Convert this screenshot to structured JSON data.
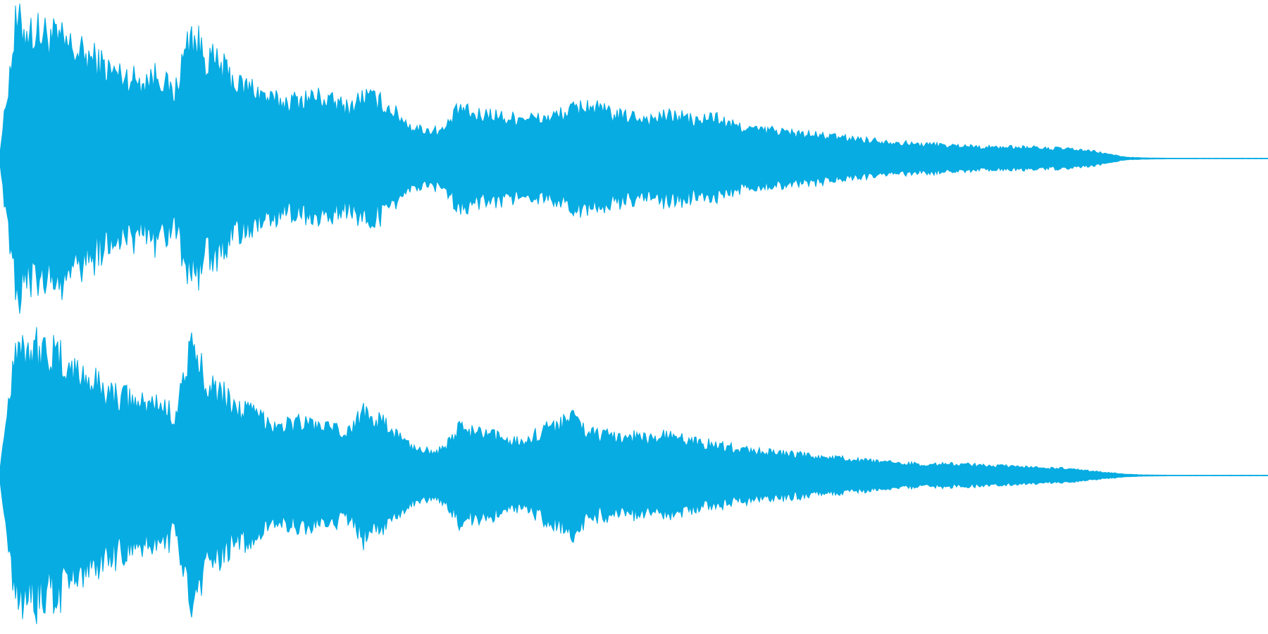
{
  "waveform": {
    "color": "#06ace2",
    "channel_count": 2,
    "channels": [
      {
        "id": "top",
        "envelope": [
          0.05,
          0.95,
          0.9,
          0.88,
          0.82,
          0.75,
          0.7,
          0.62,
          0.58,
          0.55,
          0.6,
          0.45,
          0.9,
          0.72,
          0.65,
          0.52,
          0.5,
          0.42,
          0.4,
          0.42,
          0.44,
          0.4,
          0.36,
          0.45,
          0.4,
          0.32,
          0.22,
          0.2,
          0.2,
          0.36,
          0.3,
          0.32,
          0.28,
          0.3,
          0.28,
          0.3,
          0.34,
          0.38,
          0.34,
          0.3,
          0.3,
          0.28,
          0.3,
          0.3,
          0.26,
          0.3,
          0.24,
          0.22,
          0.2,
          0.2,
          0.18,
          0.17,
          0.16,
          0.15,
          0.14,
          0.13,
          0.12,
          0.11,
          0.1,
          0.1,
          0.09,
          0.09,
          0.08,
          0.08,
          0.08,
          0.08,
          0.07,
          0.07,
          0.06,
          0.05,
          0.03,
          0.01,
          0.005,
          0.003,
          0.002,
          0.002,
          0.002,
          0.002,
          0.002,
          0.002,
          0.002
        ]
      },
      {
        "id": "bottom",
        "envelope": [
          0.05,
          0.95,
          0.92,
          0.88,
          0.8,
          0.72,
          0.66,
          0.58,
          0.55,
          0.5,
          0.52,
          0.42,
          0.88,
          0.7,
          0.58,
          0.48,
          0.44,
          0.38,
          0.36,
          0.38,
          0.36,
          0.32,
          0.3,
          0.48,
          0.38,
          0.3,
          0.2,
          0.18,
          0.18,
          0.34,
          0.3,
          0.28,
          0.26,
          0.24,
          0.3,
          0.36,
          0.42,
          0.32,
          0.28,
          0.28,
          0.28,
          0.26,
          0.28,
          0.26,
          0.24,
          0.22,
          0.2,
          0.18,
          0.17,
          0.16,
          0.15,
          0.14,
          0.13,
          0.12,
          0.11,
          0.1,
          0.09,
          0.09,
          0.08,
          0.08,
          0.08,
          0.08,
          0.07,
          0.07,
          0.06,
          0.06,
          0.05,
          0.05,
          0.04,
          0.03,
          0.02,
          0.01,
          0.005,
          0.003,
          0.002,
          0.002,
          0.002,
          0.002,
          0.002,
          0.002,
          0.002
        ]
      }
    ]
  }
}
